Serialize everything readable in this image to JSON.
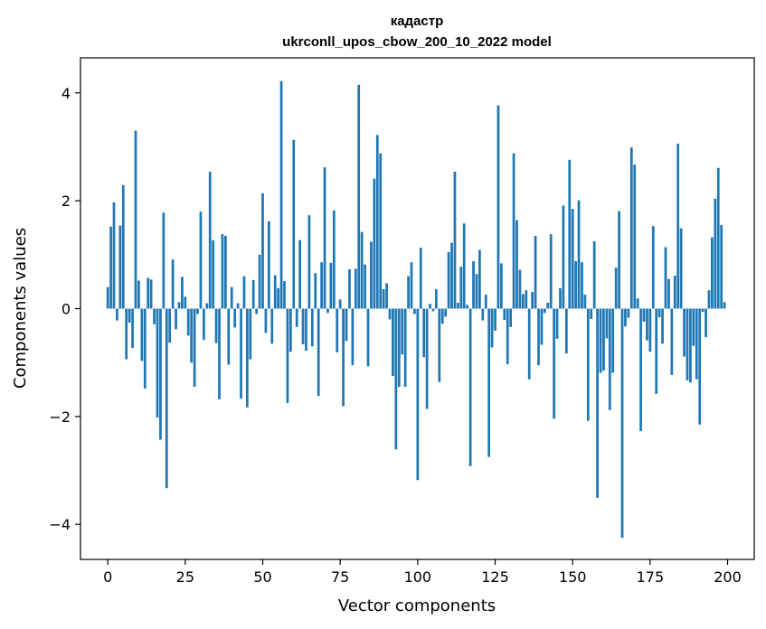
{
  "chart_data": {
    "type": "bar",
    "title": "кадастр",
    "subtitle": "ukrconll_upos_cbow_200_10_2022 model",
    "xlabel": "Vector components",
    "ylabel": "Components values",
    "xlim": [
      -8.8,
      208.6
    ],
    "ylim": [
      -4.65,
      4.65
    ],
    "x_ticks": [
      0,
      25,
      50,
      75,
      100,
      125,
      150,
      175,
      200
    ],
    "y_ticks": [
      -4,
      -2,
      0,
      2,
      4
    ],
    "y_tick_labels": [
      "−4",
      "−2",
      "0",
      "2",
      "4"
    ],
    "bar_color": "#1f77b4",
    "values": [
      0.4,
      1.52,
      1.97,
      -0.22,
      1.54,
      2.29,
      -0.94,
      -0.26,
      -0.73,
      3.3,
      0.52,
      -0.97,
      -1.48,
      0.57,
      0.54,
      -0.29,
      -2.02,
      -2.43,
      1.78,
      -3.33,
      -0.63,
      0.91,
      -0.38,
      0.12,
      0.59,
      0.22,
      -0.5,
      -1.0,
      -1.45,
      -0.1,
      1.8,
      -0.58,
      0.1,
      2.54,
      1.27,
      -0.64,
      -1.68,
      1.38,
      1.35,
      -1.04,
      0.4,
      -0.35,
      0.1,
      -1.67,
      0.6,
      -1.83,
      -0.94,
      0.53,
      -0.1,
      1.0,
      2.14,
      -0.45,
      1.62,
      -0.65,
      0.62,
      0.38,
      4.22,
      0.51,
      -1.75,
      -0.8,
      3.13,
      -0.34,
      1.27,
      -0.66,
      -0.78,
      1.73,
      -0.7,
      0.66,
      -1.62,
      0.86,
      2.62,
      -0.08,
      0.85,
      1.82,
      -0.81,
      0.17,
      -1.81,
      -0.6,
      0.73,
      -1.05,
      0.74,
      4.15,
      1.42,
      0.82,
      -1.07,
      1.24,
      2.41,
      3.22,
      2.88,
      0.36,
      0.47,
      -0.2,
      -1.25,
      -2.61,
      -1.45,
      -0.85,
      -1.45,
      0.6,
      0.86,
      -0.1,
      -3.18,
      1.13,
      -0.9,
      -1.86,
      0.09,
      -0.05,
      0.36,
      -1.36,
      -0.28,
      -0.15,
      1.05,
      1.22,
      2.54,
      0.11,
      0.78,
      1.58,
      0.07,
      -2.92,
      0.88,
      0.64,
      1.09,
      -0.22,
      0.26,
      -2.75,
      -0.72,
      -0.41,
      3.77,
      0.84,
      -0.21,
      -1.03,
      -0.34,
      2.88,
      1.64,
      0.72,
      0.27,
      0.34,
      -1.31,
      0.31,
      1.35,
      -1.05,
      -0.67,
      -0.08,
      0.11,
      1.38,
      -2.04,
      -0.56,
      0.38,
      1.91,
      -0.83,
      2.76,
      1.85,
      0.88,
      2.01,
      0.86,
      0.26,
      -2.08,
      -0.19,
      1.25,
      -3.51,
      -1.19,
      -1.15,
      -0.55,
      -1.88,
      -1.19,
      0.76,
      1.81,
      -4.25,
      -0.33,
      -0.17,
      2.99,
      2.67,
      0.19,
      -2.27,
      -0.24,
      -0.59,
      -0.8,
      1.53,
      -1.58,
      -0.16,
      -0.65,
      1.14,
      0.55,
      -1.23,
      0.61,
      3.06,
      1.49,
      -0.89,
      -1.33,
      -1.37,
      -0.69,
      -1.31,
      -2.15,
      -0.06,
      -0.53,
      0.34,
      1.32,
      2.04,
      2.61,
      1.55,
      0.12
    ]
  }
}
